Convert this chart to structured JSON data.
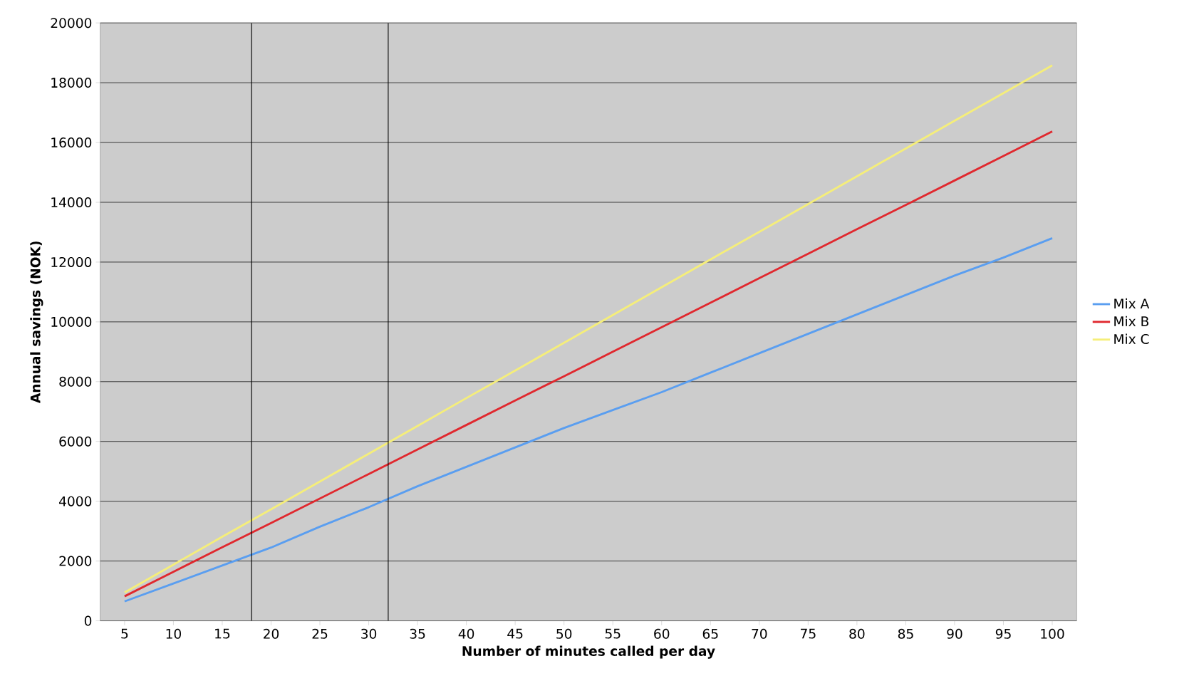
{
  "chart_data": {
    "type": "line",
    "xlabel": "Number of minutes called per day",
    "ylabel": "Annual savings (NOK)",
    "x": [
      5,
      10,
      15,
      20,
      25,
      30,
      35,
      40,
      45,
      50,
      55,
      60,
      65,
      70,
      75,
      80,
      85,
      90,
      95,
      100
    ],
    "xlim": [
      2.5,
      102.5
    ],
    "xticks": [
      5,
      10,
      15,
      20,
      25,
      30,
      35,
      40,
      45,
      50,
      55,
      60,
      65,
      70,
      75,
      80,
      85,
      90,
      95,
      100
    ],
    "ylim": [
      0,
      20000
    ],
    "yticks": [
      0,
      2000,
      4000,
      6000,
      8000,
      10000,
      12000,
      14000,
      16000,
      18000,
      20000
    ],
    "grid": "y",
    "legend": "right",
    "marker": "none",
    "line_style": "solid",
    "series": [
      {
        "name": "Mix A",
        "color": "#5a9ef0",
        "values": [
          650,
          1250,
          1850,
          2450,
          3150,
          3800,
          4500,
          5150,
          5800,
          6450,
          7050,
          7650,
          8300,
          8950,
          9600,
          10250,
          10900,
          11550,
          12150,
          12800
        ]
      },
      {
        "name": "Mix B",
        "color": "#e0282e",
        "values": [
          820,
          1640,
          2460,
          3270,
          4090,
          4910,
          5730,
          6550,
          7370,
          8180,
          9000,
          9820,
          10640,
          11460,
          12280,
          13100,
          13910,
          14730,
          15550,
          16370
        ]
      },
      {
        "name": "Mix C",
        "color": "#f5ee7a",
        "values": [
          950,
          1880,
          2810,
          3730,
          4660,
          5590,
          6520,
          7450,
          8370,
          9300,
          10230,
          11160,
          12090,
          13010,
          13940,
          14870,
          15800,
          16730,
          17650,
          18580
        ]
      }
    ],
    "ref_lines": [
      {
        "axis": "x",
        "value": 18,
        "color": "#000000"
      },
      {
        "axis": "x",
        "value": 32,
        "color": "#000000"
      }
    ]
  }
}
